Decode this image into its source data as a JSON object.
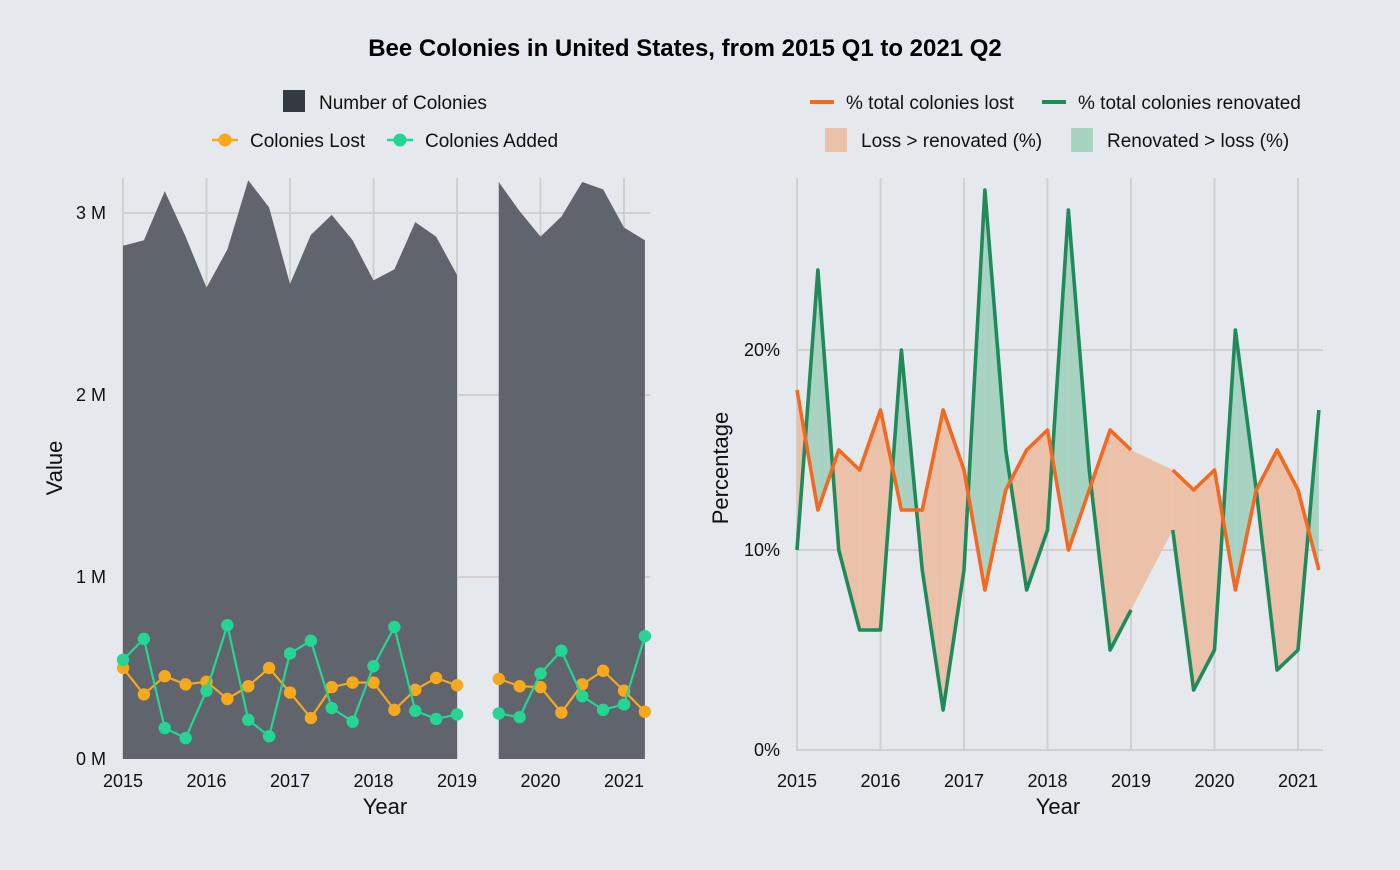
{
  "title": "Bee Colonies in United States, from 2015 Q1 to 2021 Q2",
  "colors": {
    "background": "#e5e8ec",
    "colonies_area": "#5b5f67",
    "colonies_legend": "#343a42",
    "lost": "#f7a81c",
    "added": "#25d592",
    "pct_lost": "#f26a21",
    "pct_renovated": "#1f8b5b",
    "fill_loss": "#ecc1a9",
    "fill_renovated": "#a8d2c1"
  },
  "chart_data": [
    {
      "type": "area",
      "xlabel": "Year",
      "ylabel": "Value",
      "xlim": [
        2015,
        2021.3
      ],
      "ylim": [
        0,
        3200000
      ],
      "x_ticks": [
        2015,
        2016,
        2017,
        2018,
        2019,
        2020,
        2021
      ],
      "x_tick_labels": [
        "2015",
        "2016",
        "2017",
        "2018",
        "2019",
        "2020",
        "2021"
      ],
      "y_ticks": [
        0,
        1000000,
        2000000,
        3000000
      ],
      "y_tick_labels": [
        "0 M",
        "1 M",
        "2 M",
        "3 M"
      ],
      "grid": true,
      "legend_position": "top",
      "legend": {
        "area": "Number of Colonies",
        "lost": "Colonies Lost",
        "added": "Colonies Added"
      },
      "x": [
        2015.0,
        2015.25,
        2015.5,
        2015.75,
        2016.0,
        2016.25,
        2016.5,
        2016.75,
        2017.0,
        2017.25,
        2017.5,
        2017.75,
        2018.0,
        2018.25,
        2018.5,
        2018.75,
        2019.0,
        null,
        2019.5,
        2019.75,
        2020.0,
        2020.25,
        2020.5,
        2020.75,
        2021.0,
        2021.25
      ],
      "series": [
        {
          "name": "Number of Colonies",
          "kind": "area",
          "values": [
            2820000,
            2850000,
            3120000,
            2870000,
            2590000,
            2800000,
            3180000,
            3030000,
            2610000,
            2880000,
            2990000,
            2850000,
            2630000,
            2690000,
            2950000,
            2870000,
            2660000,
            null,
            3170000,
            3010000,
            2870000,
            2980000,
            3170000,
            3130000,
            2920000,
            2850000
          ]
        },
        {
          "name": "Colonies Lost",
          "kind": "line",
          "values": [
            500000,
            355000,
            455000,
            410000,
            425000,
            330000,
            400000,
            500000,
            365000,
            225000,
            395000,
            420000,
            420000,
            270000,
            380000,
            445000,
            405000,
            null,
            440000,
            400000,
            395000,
            255000,
            410000,
            485000,
            375000,
            260000
          ]
        },
        {
          "name": "Colonies Added",
          "kind": "line",
          "values": [
            545000,
            660000,
            170000,
            115000,
            375000,
            735000,
            215000,
            125000,
            580000,
            650000,
            280000,
            205000,
            510000,
            725000,
            265000,
            220000,
            245000,
            null,
            250000,
            230000,
            470000,
            595000,
            345000,
            270000,
            300000,
            675000
          ]
        }
      ]
    },
    {
      "type": "line",
      "xlabel": "Year",
      "ylabel": "Percentage",
      "xlim": [
        2015,
        2021.3
      ],
      "ylim": [
        0,
        28
      ],
      "x_ticks": [
        2015,
        2016,
        2017,
        2018,
        2019,
        2020,
        2021
      ],
      "x_tick_labels": [
        "2015",
        "2016",
        "2017",
        "2018",
        "2019",
        "2020",
        "2021"
      ],
      "y_ticks": [
        0,
        10,
        20
      ],
      "y_tick_labels": [
        "0%",
        "10%",
        "20%"
      ],
      "grid": true,
      "legend_position": "top",
      "legend": {
        "lost": "% total colonies lost",
        "renovated": "% total colonies renovated",
        "loss_fill": "Loss > renovated (%)",
        "renovated_fill": "Renovated > loss (%)"
      },
      "x": [
        2015.0,
        2015.25,
        2015.5,
        2015.75,
        2016.0,
        2016.25,
        2016.5,
        2016.75,
        2017.0,
        2017.25,
        2017.5,
        2017.75,
        2018.0,
        2018.25,
        2018.5,
        2018.75,
        2019.0,
        2019.25,
        2019.5,
        2019.75,
        2020.0,
        2020.25,
        2020.5,
        2020.75,
        2021.0,
        2021.25
      ],
      "series": [
        {
          "name": "% total colonies lost",
          "values": [
            18,
            12,
            15,
            14,
            17,
            12,
            12,
            17,
            14,
            8,
            13,
            15,
            16,
            10,
            13,
            16,
            15,
            null,
            14,
            13,
            14,
            8,
            13,
            15,
            13,
            9
          ]
        },
        {
          "name": "% total colonies renovated",
          "values": [
            10,
            24,
            10,
            6,
            6,
            20,
            9,
            2,
            9,
            28,
            15,
            8,
            11,
            27,
            14,
            5,
            7,
            null,
            11,
            3,
            5,
            21,
            13,
            4,
            5,
            17
          ]
        }
      ]
    }
  ]
}
